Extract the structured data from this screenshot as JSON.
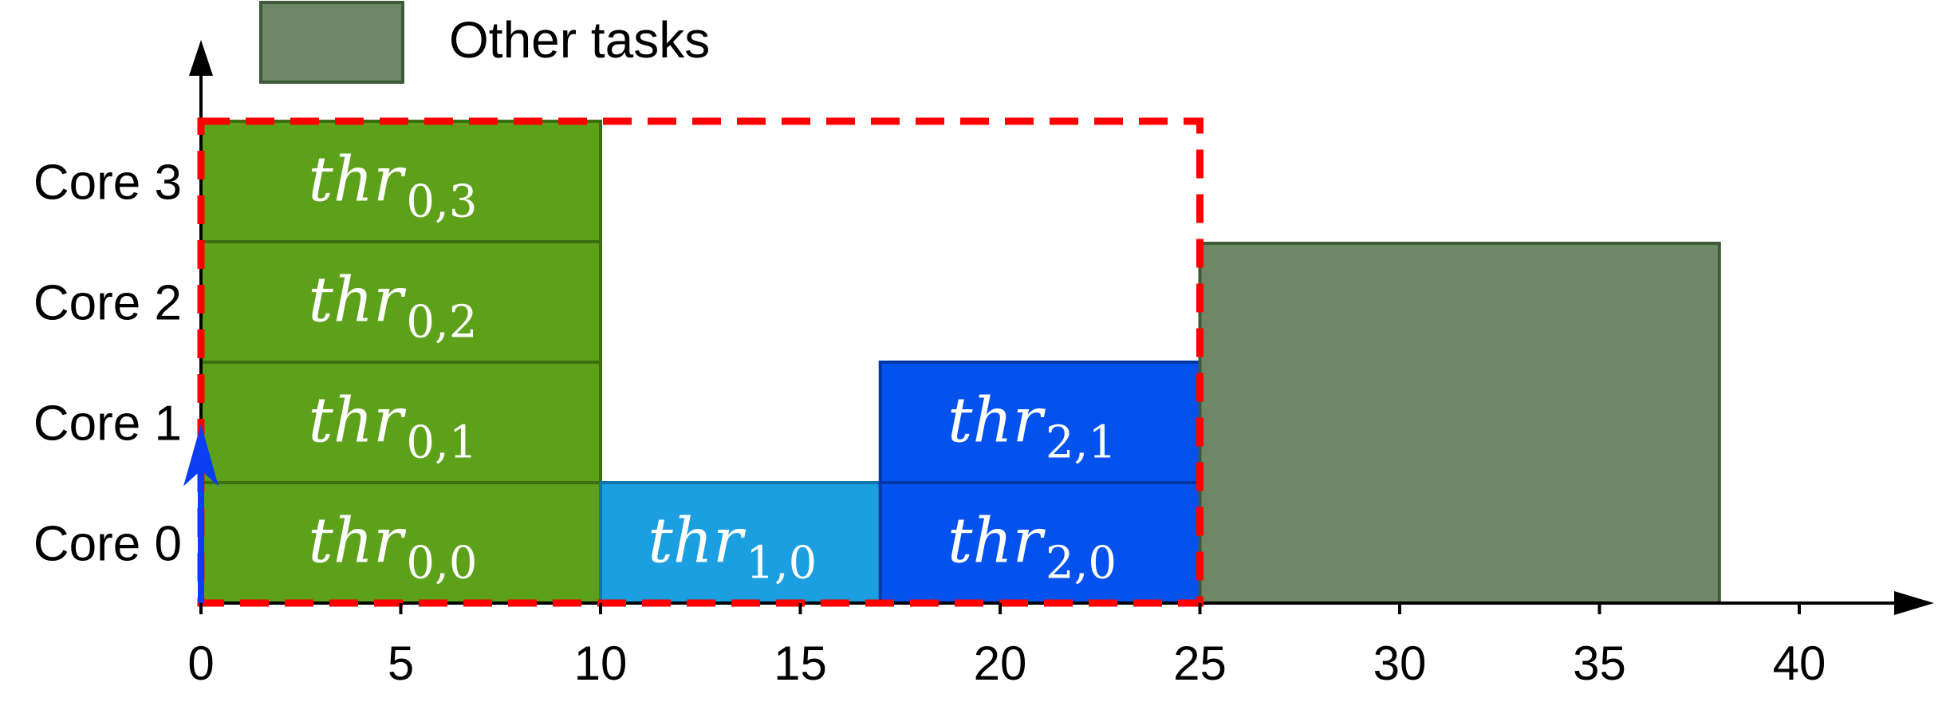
{
  "chart_data": {
    "type": "gantt",
    "x_ticks": [
      0,
      5,
      10,
      15,
      20,
      25,
      30,
      35,
      40
    ],
    "x_range": [
      0,
      42
    ],
    "lanes": [
      "Core 0",
      "Core 1",
      "Core 2",
      "Core 3"
    ],
    "legend": {
      "label": "Other tasks",
      "color": "#6e8865"
    },
    "tasks": [
      {
        "id": "thr00",
        "name": "thr",
        "sub": "0,0",
        "lane": 0,
        "start": 0,
        "end": 10,
        "color": "#5ca119",
        "border": "#3d6e10"
      },
      {
        "id": "thr01",
        "name": "thr",
        "sub": "0,1",
        "lane": 1,
        "start": 0,
        "end": 10,
        "color": "#5ca119",
        "border": "#3d6e10"
      },
      {
        "id": "thr02",
        "name": "thr",
        "sub": "0,2",
        "lane": 2,
        "start": 0,
        "end": 10,
        "color": "#5ca119",
        "border": "#3d6e10"
      },
      {
        "id": "thr03",
        "name": "thr",
        "sub": "0,3",
        "lane": 3,
        "start": 0,
        "end": 10,
        "color": "#5ca119",
        "border": "#3d6e10"
      },
      {
        "id": "thr10",
        "name": "thr",
        "sub": "1,0",
        "lane": 0,
        "start": 10,
        "end": 17,
        "color": "#1b9fe0",
        "border": "#1476a8"
      },
      {
        "id": "thr20",
        "name": "thr",
        "sub": "2,0",
        "lane": 0,
        "start": 17,
        "end": 25,
        "color": "#0452ee",
        "border": "#0338a8"
      },
      {
        "id": "thr21",
        "name": "thr",
        "sub": "2,1",
        "lane": 1,
        "start": 17,
        "end": 25,
        "color": "#0452ee",
        "border": "#0338a8"
      }
    ],
    "other_task": {
      "start": 25,
      "end": 38,
      "lanes": 3,
      "color": "#6e8865",
      "border": "#3f5a39"
    },
    "deadline_box": {
      "start": 0,
      "end": 25,
      "lanes": 4,
      "color": "#ff0000"
    },
    "release_arrow": {
      "time": 0,
      "lane_height": 1.5,
      "color": "#0a3ef5"
    }
  }
}
